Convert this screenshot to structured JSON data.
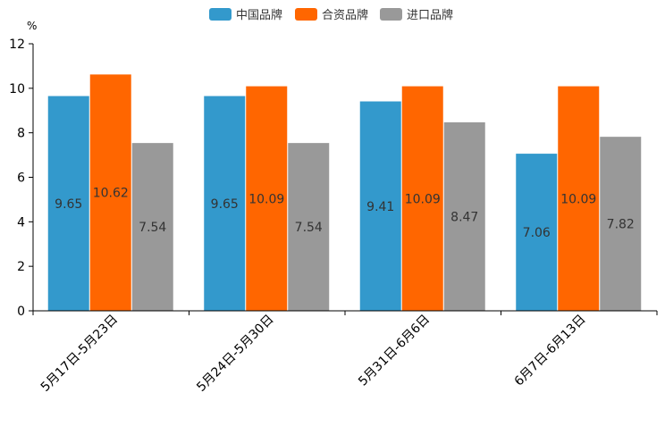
{
  "chart_data": {
    "type": "bar",
    "ylabel": "%",
    "ylim": [
      0,
      12
    ],
    "yticks": [
      0,
      2,
      4,
      6,
      8,
      10,
      12
    ],
    "legend_position": "top-center",
    "categories": [
      "5月17日-5月23日",
      "5月24日-5月30日",
      "5月31日-6月6日",
      "6月7日-6月13日"
    ],
    "series": [
      {
        "name": "中国品牌",
        "color": "#3399cc",
        "values": [
          9.65,
          9.65,
          9.41,
          7.06
        ],
        "labels": [
          "9.65",
          "9.65",
          "9.41",
          "7.06"
        ]
      },
      {
        "name": "合资品牌",
        "color": "#ff6600",
        "values": [
          10.62,
          10.09,
          10.09,
          10.09
        ],
        "labels": [
          "10.62",
          "10.09",
          "10.09",
          "10.09"
        ]
      },
      {
        "name": "进口品牌",
        "color": "#999999",
        "values": [
          7.54,
          7.54,
          8.47,
          7.82
        ],
        "labels": [
          "7.54",
          "7.54",
          "8.47",
          "7.82"
        ]
      }
    ]
  }
}
